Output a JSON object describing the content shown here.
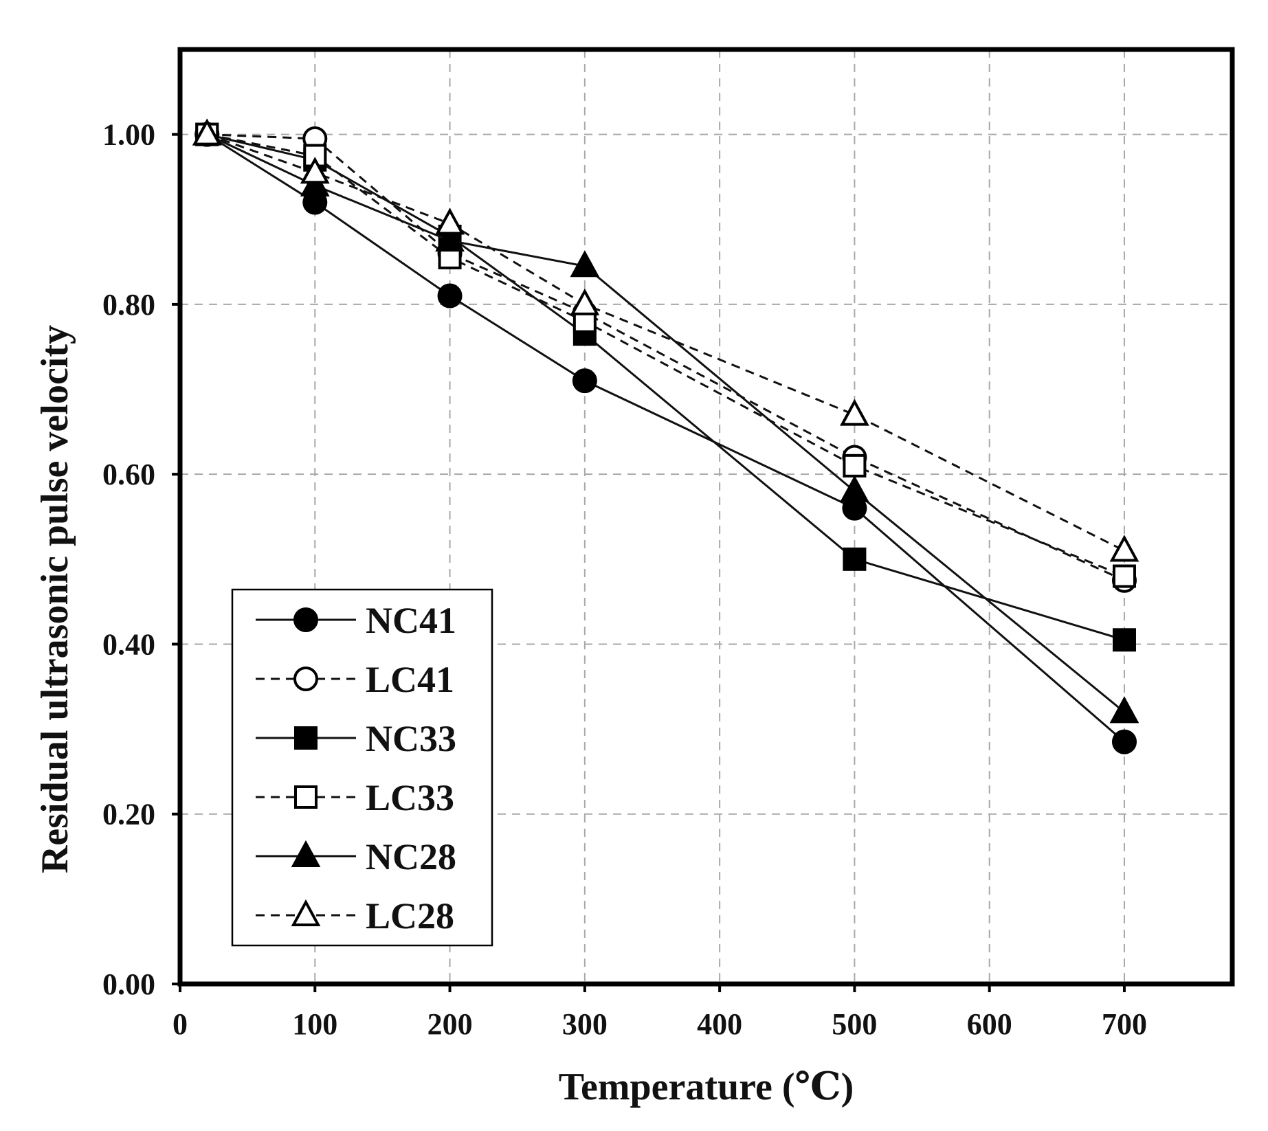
{
  "chart_data": {
    "type": "line",
    "title": "",
    "xlabel": "Temperature (℃)",
    "ylabel": "Residual ultrasonic pulse velocity",
    "xlim": [
      0,
      780
    ],
    "ylim": [
      0,
      1.1
    ],
    "x_ticks": [
      0,
      100,
      200,
      300,
      400,
      500,
      600,
      700
    ],
    "x_tick_labels": [
      "0",
      "100",
      "200",
      "300",
      "400",
      "500",
      "600",
      "700"
    ],
    "y_ticks": [
      0,
      0.2,
      0.4,
      0.6,
      0.8,
      1.0
    ],
    "y_tick_labels": [
      "0.00",
      "0.20",
      "0.40",
      "0.60",
      "0.80",
      "1.00"
    ],
    "grid": true,
    "legend_position": "bottom-left",
    "x": [
      20,
      100,
      200,
      300,
      500,
      700
    ],
    "series": [
      {
        "name": "NC41",
        "line": "solid",
        "marker": "circle",
        "filled": true,
        "values": [
          1.0,
          0.92,
          0.81,
          0.71,
          0.56,
          0.285
        ]
      },
      {
        "name": "LC41",
        "line": "dashed",
        "marker": "circle",
        "filled": false,
        "values": [
          1.0,
          0.995,
          0.86,
          0.79,
          0.62,
          0.475
        ]
      },
      {
        "name": "NC33",
        "line": "solid",
        "marker": "square",
        "filled": true,
        "values": [
          1.0,
          0.97,
          0.88,
          0.765,
          0.5,
          0.405
        ]
      },
      {
        "name": "LC33",
        "line": "dashed",
        "marker": "square",
        "filled": false,
        "values": [
          1.0,
          0.975,
          0.855,
          0.78,
          0.61,
          0.48
        ]
      },
      {
        "name": "NC28",
        "line": "solid",
        "marker": "triangle",
        "filled": true,
        "values": [
          1.0,
          0.94,
          0.875,
          0.845,
          0.58,
          0.32
        ]
      },
      {
        "name": "LC28",
        "line": "dashed",
        "marker": "triangle",
        "filled": false,
        "values": [
          1.0,
          0.955,
          0.895,
          0.8,
          0.67,
          0.51
        ]
      }
    ]
  }
}
